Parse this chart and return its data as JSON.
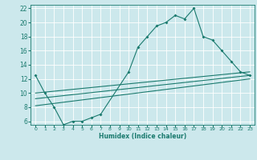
{
  "title": "",
  "xlabel": "Humidex (Indice chaleur)",
  "background_color": "#cce8ec",
  "grid_color": "#ffffff",
  "line_color": "#1a7a6e",
  "xlim": [
    -0.5,
    23.5
  ],
  "ylim": [
    5.5,
    22.5
  ],
  "xticks": [
    0,
    1,
    2,
    3,
    4,
    5,
    6,
    7,
    8,
    9,
    10,
    11,
    12,
    13,
    14,
    15,
    16,
    17,
    18,
    19,
    20,
    21,
    22,
    23
  ],
  "yticks": [
    6,
    8,
    10,
    12,
    14,
    16,
    18,
    20,
    22
  ],
  "curve1_x": [
    0,
    1,
    2,
    3,
    4,
    5,
    6,
    7,
    10,
    11,
    12,
    13,
    14,
    15,
    16,
    17,
    18,
    19,
    20,
    21,
    22,
    23
  ],
  "curve1_y": [
    12.5,
    10.0,
    8.0,
    5.5,
    6.0,
    6.0,
    6.5,
    7.0,
    13.0,
    16.5,
    18.0,
    19.5,
    20.0,
    21.0,
    20.5,
    22.0,
    18.0,
    17.5,
    16.0,
    14.5,
    13.0,
    12.5
  ],
  "line1_x": [
    0,
    23
  ],
  "line1_y": [
    10.0,
    13.0
  ],
  "line2_x": [
    0,
    23
  ],
  "line2_y": [
    9.2,
    12.5
  ],
  "line3_x": [
    0,
    23
  ],
  "line3_y": [
    8.2,
    12.0
  ]
}
